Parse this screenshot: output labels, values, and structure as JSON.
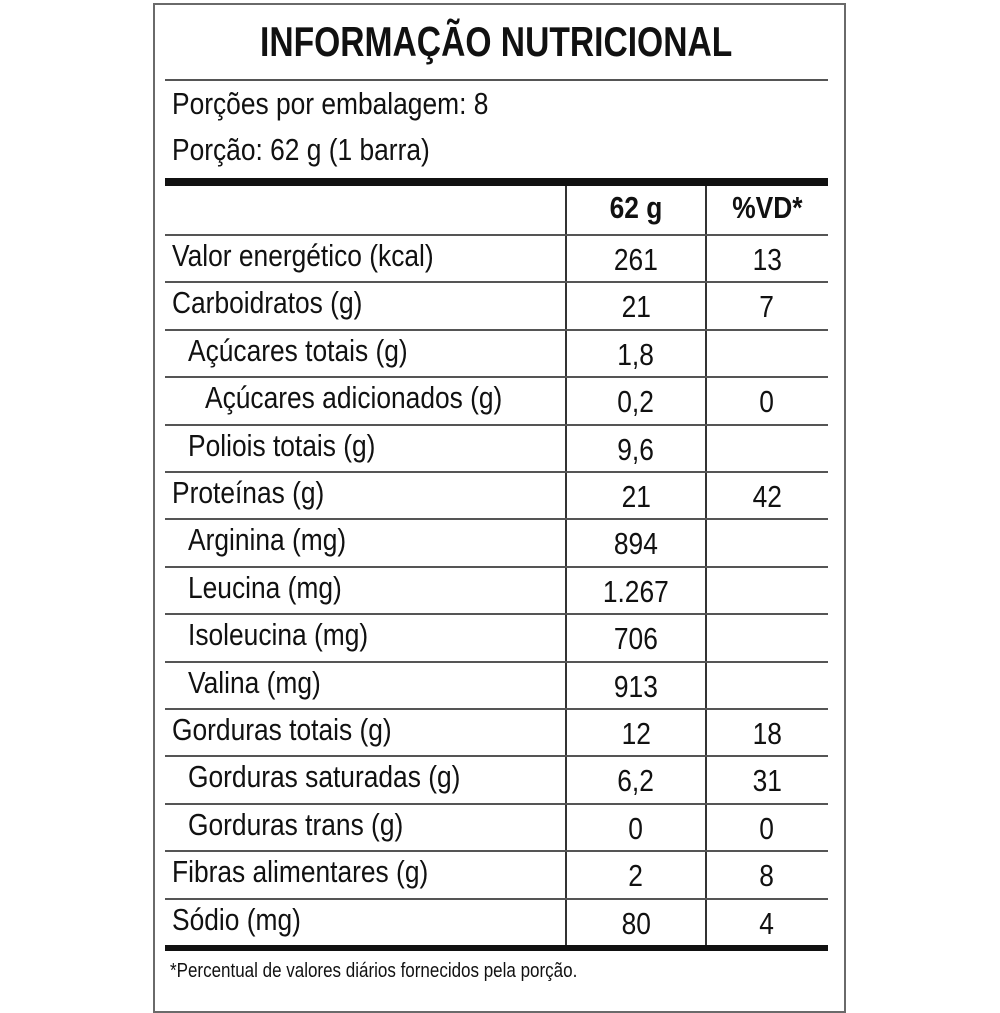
{
  "title": "INFORMAÇÃO NUTRICIONAL",
  "servings_per_package": "Porções por embalagem: 8",
  "serving_size": "Porção: 62 g (1 barra)",
  "columns": {
    "amount": "62 g",
    "dv": "%VD*"
  },
  "rows": [
    {
      "label": "Valor energético (kcal)",
      "amount": "261",
      "dv": "13",
      "indent": 0
    },
    {
      "label": "Carboidratos (g)",
      "amount": "21",
      "dv": "7",
      "indent": 0
    },
    {
      "label": "Açúcares totais (g)",
      "amount": "1,8",
      "dv": "",
      "indent": 1
    },
    {
      "label": "Açúcares adicionados (g)",
      "amount": "0,2",
      "dv": "0",
      "indent": 2
    },
    {
      "label": "Poliois totais (g)",
      "amount": "9,6",
      "dv": "",
      "indent": 1
    },
    {
      "label": "Proteínas (g)",
      "amount": "21",
      "dv": "42",
      "indent": 0
    },
    {
      "label": "Arginina (mg)",
      "amount": "894",
      "dv": "",
      "indent": 1
    },
    {
      "label": "Leucina (mg)",
      "amount": "1.267",
      "dv": "",
      "indent": 1
    },
    {
      "label": "Isoleucina (mg)",
      "amount": "706",
      "dv": "",
      "indent": 1
    },
    {
      "label": "Valina (mg)",
      "amount": "913",
      "dv": "",
      "indent": 1
    },
    {
      "label": "Gorduras totais (g)",
      "amount": "12",
      "dv": "18",
      "indent": 0
    },
    {
      "label": "Gorduras saturadas (g)",
      "amount": "6,2",
      "dv": "31",
      "indent": 1
    },
    {
      "label": "Gorduras trans (g)",
      "amount": "0",
      "dv": "0",
      "indent": 1
    },
    {
      "label": "Fibras alimentares (g)",
      "amount": "2",
      "dv": "8",
      "indent": 0
    },
    {
      "label": "Sódio (mg)",
      "amount": "80",
      "dv": "4",
      "indent": 0
    }
  ],
  "footnote": "*Percentual de valores diários fornecidos pela porção."
}
